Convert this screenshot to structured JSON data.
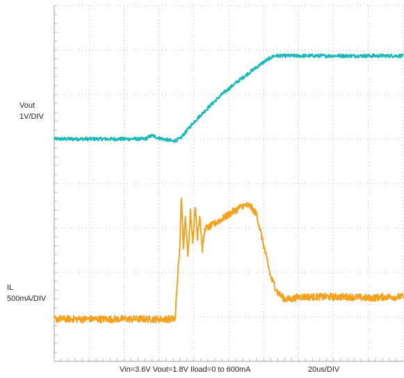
{
  "channels": [
    {
      "name": "Vout",
      "scale": "1V/DIV",
      "color": "#17b8b8"
    },
    {
      "name": "IL",
      "scale": "500mA/DIV",
      "color": "#f5a11c"
    }
  ],
  "footer": {
    "conditions": "Vin=3.6V Vout=1.8V Iload=0 to 600mA",
    "timebase": "20us/DIV"
  },
  "chart_data": {
    "type": "line",
    "title": "",
    "xlabel": "20us/DIV",
    "ylabel": "",
    "grid": true,
    "x_unit": "div",
    "x_range": [
      0,
      10
    ],
    "y_range_div": [
      0,
      8
    ],
    "series": [
      {
        "name": "Vout",
        "scale": "1V/DIV",
        "color": "#17b8b8",
        "unit": "div",
        "x": [
          0,
          1.0,
          2.0,
          2.6,
          2.8,
          3.0,
          3.4,
          3.6,
          4.0,
          4.4,
          4.8,
          5.2,
          5.6,
          6.0,
          6.3,
          6.6,
          7.0,
          8.0,
          9.0,
          10.0
        ],
        "values": [
          5.0,
          5.0,
          5.0,
          5.0,
          5.08,
          5.02,
          4.95,
          5.0,
          5.38,
          5.7,
          6.0,
          6.26,
          6.5,
          6.73,
          6.87,
          6.87,
          6.87,
          6.87,
          6.87,
          6.87
        ],
        "noise": 0.04
      },
      {
        "name": "IL",
        "scale": "500mA/DIV",
        "color": "#f5a11c",
        "unit": "div",
        "x": [
          0,
          1.0,
          2.0,
          3.0,
          3.47,
          3.5,
          3.6,
          3.64,
          3.7,
          3.76,
          3.83,
          3.9,
          3.97,
          4.04,
          4.1,
          4.17,
          4.24,
          4.32,
          4.4,
          4.6,
          4.8,
          5.0,
          5.2,
          5.4,
          5.6,
          5.8,
          6.0,
          6.2,
          6.4,
          6.6,
          6.8,
          7.0,
          7.5,
          8.0,
          8.5,
          9.0,
          9.5,
          10.0
        ],
        "values": [
          0.95,
          0.95,
          0.95,
          0.95,
          0.95,
          1.5,
          2.6,
          3.7,
          2.6,
          3.3,
          2.3,
          3.4,
          2.7,
          3.5,
          2.8,
          3.3,
          2.5,
          3.0,
          3.0,
          3.1,
          3.2,
          3.3,
          3.4,
          3.5,
          3.5,
          3.3,
          2.6,
          1.9,
          1.55,
          1.4,
          1.4,
          1.45,
          1.45,
          1.45,
          1.45,
          1.42,
          1.45,
          1.45
        ],
        "noise": 0.08
      }
    ]
  }
}
